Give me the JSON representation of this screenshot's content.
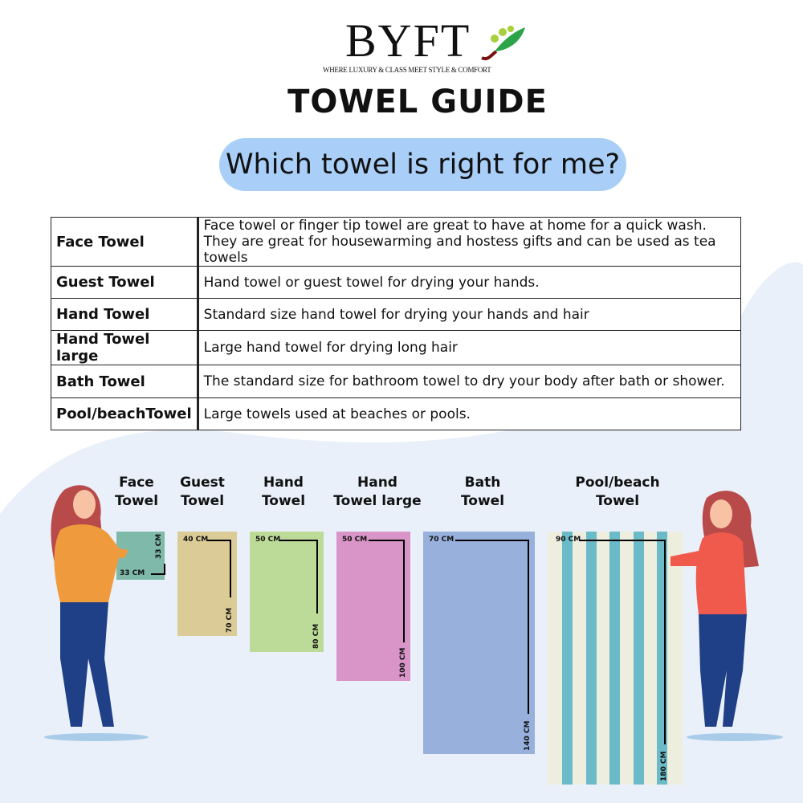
{
  "brand": {
    "name": "BYFT",
    "tagline": "WHERE LUXURY & CLASS MEET STYLE & COMFORT"
  },
  "title": "TOWEL GUIDE",
  "subtitle": "Which towel is right for me?",
  "table": [
    {
      "name": "Face Towel",
      "desc": "Face towel or finger tip towel are great to have at home for a quick wash.",
      "desc2": "They are great for housewarming and hostess gifts and can be used as tea towels"
    },
    {
      "name": "Guest Towel",
      "desc": "Hand towel or guest towel for drying your hands."
    },
    {
      "name": "Hand Towel",
      "desc": "Standard size hand towel for drying your hands and hair"
    },
    {
      "name": "Hand Towel large",
      "desc": "Large hand towel for drying long hair"
    },
    {
      "name": "Bath Towel",
      "desc": "The standard size for bathroom towel to dry your body after bath or shower."
    },
    {
      "name": "Pool/beachTowel",
      "desc": "Large towels used at beaches or pools."
    }
  ],
  "towels": [
    {
      "l1": "Face",
      "l2": "Towel",
      "w": "33 CM",
      "h": "33 CM",
      "color": "#7fb9a9"
    },
    {
      "l1": "Guest",
      "l2": "Towel",
      "w": "40 CM",
      "h": "70 CM",
      "color": "#dbcb96"
    },
    {
      "l1": "Hand",
      "l2": "Towel",
      "w": "50 CM",
      "h": "80 CM",
      "color": "#bddb98"
    },
    {
      "l1": "Hand",
      "l2": "Towel large",
      "w": "50 CM",
      "h": "100 CM",
      "color": "#d995c8"
    },
    {
      "l1": "Bath",
      "l2": "Towel",
      "w": "70 CM",
      "h": "140 CM",
      "color": "#97b0dc"
    },
    {
      "l1": "Pool/beach",
      "l2": "Towel",
      "w": "90 CM",
      "h": "180 CM",
      "color": "#eeeedf",
      "stripe": "#6bbac8"
    }
  ]
}
